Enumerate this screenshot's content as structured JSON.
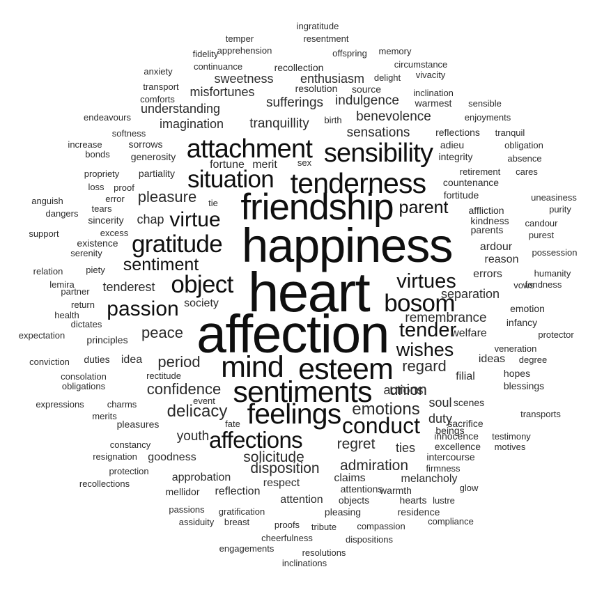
{
  "words": [
    {
      "text": "heart",
      "weight": 100
    },
    {
      "text": "affection",
      "weight": 96
    },
    {
      "text": "happiness",
      "weight": 86
    },
    {
      "text": "friendship",
      "weight": 66
    },
    {
      "text": "sentiments",
      "weight": 52
    },
    {
      "text": "mind",
      "weight": 52
    },
    {
      "text": "esteem",
      "weight": 52
    },
    {
      "text": "tenderness",
      "weight": 50
    },
    {
      "text": "feelings",
      "weight": 50
    },
    {
      "text": "attachment",
      "weight": 46
    },
    {
      "text": "sensibility",
      "weight": 46
    },
    {
      "text": "situation",
      "weight": 42
    },
    {
      "text": "gratitude",
      "weight": 42
    },
    {
      "text": "object",
      "weight": 42
    },
    {
      "text": "bosom",
      "weight": 42
    },
    {
      "text": "affections",
      "weight": 40
    },
    {
      "text": "conduct",
      "weight": 38
    },
    {
      "text": "passion",
      "weight": 36
    },
    {
      "text": "virtue",
      "weight": 36
    },
    {
      "text": "virtues",
      "weight": 34
    },
    {
      "text": "tender",
      "weight": 34
    },
    {
      "text": "wishes",
      "weight": 32
    },
    {
      "text": "sentiment",
      "weight": 30
    },
    {
      "text": "parent",
      "weight": 30
    },
    {
      "text": "emotions",
      "weight": 28
    },
    {
      "text": "delicacy",
      "weight": 28
    },
    {
      "text": "confidence",
      "weight": 26
    },
    {
      "text": "union",
      "weight": 26
    },
    {
      "text": "regard",
      "weight": 26
    },
    {
      "text": "period",
      "weight": 26
    },
    {
      "text": "peace",
      "weight": 26
    },
    {
      "text": "pleasure",
      "weight": 26
    },
    {
      "text": "regret",
      "weight": 24
    },
    {
      "text": "disposition",
      "weight": 24
    },
    {
      "text": "solicitude",
      "weight": 24
    },
    {
      "text": "admiration",
      "weight": 24
    },
    {
      "text": "youth",
      "weight": 22
    },
    {
      "text": "tranquillity",
      "weight": 22
    },
    {
      "text": "benevolence",
      "weight": 22
    },
    {
      "text": "sensations",
      "weight": 22
    },
    {
      "text": "sufferings",
      "weight": 22
    },
    {
      "text": "indulgence",
      "weight": 22
    },
    {
      "text": "remembrance",
      "weight": 22
    },
    {
      "text": "enthusiasm",
      "weight": 20
    },
    {
      "text": "sweetness",
      "weight": 20
    },
    {
      "text": "misfortunes",
      "weight": 20
    },
    {
      "text": "understanding",
      "weight": 20
    },
    {
      "text": "imagination",
      "weight": 20
    },
    {
      "text": "tenderest",
      "weight": 20
    },
    {
      "text": "society",
      "weight": 18
    },
    {
      "text": "soul",
      "weight": 20
    },
    {
      "text": "actions",
      "weight": 20
    },
    {
      "text": "ties",
      "weight": 20
    },
    {
      "text": "duty",
      "weight": 20
    },
    {
      "text": "chap",
      "weight": 20
    },
    {
      "text": "separation",
      "weight": 20
    },
    {
      "text": "errors",
      "weight": 18
    },
    {
      "text": "ardour",
      "weight": 18
    },
    {
      "text": "reason",
      "weight": 18
    },
    {
      "text": "welfare",
      "weight": 18
    },
    {
      "text": "ideas",
      "weight": 18
    },
    {
      "text": "idea",
      "weight": 18
    },
    {
      "text": "filial",
      "weight": 18
    },
    {
      "text": "goodness",
      "weight": 18
    },
    {
      "text": "approbation",
      "weight": 18
    },
    {
      "text": "respect",
      "weight": 18
    },
    {
      "text": "claims",
      "weight": 18
    },
    {
      "text": "melancholy",
      "weight": 18
    },
    {
      "text": "reflection",
      "weight": 18
    },
    {
      "text": "mellidor",
      "weight": 16
    },
    {
      "text": "attention",
      "weight": 18
    },
    {
      "text": "fortune",
      "weight": 18
    },
    {
      "text": "merit",
      "weight": 18
    },
    {
      "text": "generosity",
      "weight": 16
    },
    {
      "text": "sorrows",
      "weight": 16
    },
    {
      "text": "partiality",
      "weight": 16
    },
    {
      "text": "recollection",
      "weight": 16
    },
    {
      "text": "resolution",
      "weight": 16
    },
    {
      "text": "source",
      "weight": 16
    },
    {
      "text": "fortitude",
      "weight": 16
    },
    {
      "text": "countenance",
      "weight": 16
    },
    {
      "text": "integrity",
      "weight": 16
    },
    {
      "text": "adieu",
      "weight": 16
    },
    {
      "text": "reflections",
      "weight": 16
    },
    {
      "text": "warmest",
      "weight": 16
    },
    {
      "text": "principles",
      "weight": 16
    },
    {
      "text": "duties",
      "weight": 16
    },
    {
      "text": "emotion",
      "weight": 16
    },
    {
      "text": "infancy",
      "weight": 16
    },
    {
      "text": "pleasing",
      "weight": 16
    },
    {
      "text": "attentions",
      "weight": 16
    },
    {
      "text": "objects",
      "weight": 16
    },
    {
      "text": "warmth",
      "weight": 16
    },
    {
      "text": "hearts",
      "weight": 16
    },
    {
      "text": "residence",
      "weight": 16
    },
    {
      "text": "beings",
      "weight": 16
    },
    {
      "text": "scenes",
      "weight": 16
    },
    {
      "text": "sacrifice",
      "weight": 16
    },
    {
      "text": "innocence",
      "weight": 16
    },
    {
      "text": "excellence",
      "weight": 16
    },
    {
      "text": "intercourse",
      "weight": 16
    },
    {
      "text": "hopes",
      "weight": 16
    },
    {
      "text": "blessings",
      "weight": 16
    },
    {
      "text": "veneration",
      "weight": 14
    },
    {
      "text": "degree",
      "weight": 14
    },
    {
      "text": "protector",
      "weight": 14
    },
    {
      "text": "vows",
      "weight": 14
    },
    {
      "text": "fondness",
      "weight": 14
    },
    {
      "text": "humanity",
      "weight": 14
    },
    {
      "text": "possession",
      "weight": 14
    },
    {
      "text": "purest",
      "weight": 14
    },
    {
      "text": "candour",
      "weight": 14
    },
    {
      "text": "purity",
      "weight": 14
    },
    {
      "text": "uneasiness",
      "weight": 14
    },
    {
      "text": "affliction",
      "weight": 16
    },
    {
      "text": "kindness",
      "weight": 16
    },
    {
      "text": "parents",
      "weight": 16
    },
    {
      "text": "retirement",
      "weight": 14
    },
    {
      "text": "cares",
      "weight": 14
    },
    {
      "text": "absence",
      "weight": 14
    },
    {
      "text": "obligation",
      "weight": 14
    },
    {
      "text": "tranquil",
      "weight": 14
    },
    {
      "text": "enjoyments",
      "weight": 14
    },
    {
      "text": "sensible",
      "weight": 14
    },
    {
      "text": "inclination",
      "weight": 14
    },
    {
      "text": "vivacity",
      "weight": 14
    },
    {
      "text": "circumstance",
      "weight": 14
    },
    {
      "text": "delight",
      "weight": 14
    },
    {
      "text": "memory",
      "weight": 14
    },
    {
      "text": "offspring",
      "weight": 14
    },
    {
      "text": "resentment",
      "weight": 14
    },
    {
      "text": "ingratitude",
      "weight": 14
    },
    {
      "text": "temper",
      "weight": 14
    },
    {
      "text": "apprehension",
      "weight": 14
    },
    {
      "text": "fidelity",
      "weight": 14
    },
    {
      "text": "continuance",
      "weight": 14
    },
    {
      "text": "anxiety",
      "weight": 14
    },
    {
      "text": "transport",
      "weight": 14
    },
    {
      "text": "comforts",
      "weight": 14
    },
    {
      "text": "endeavours",
      "weight": 14
    },
    {
      "text": "softness",
      "weight": 14
    },
    {
      "text": "increase",
      "weight": 14
    },
    {
      "text": "bonds",
      "weight": 14
    },
    {
      "text": "propriety",
      "weight": 14
    },
    {
      "text": "proof",
      "weight": 14
    },
    {
      "text": "loss",
      "weight": 14
    },
    {
      "text": "anguish",
      "weight": 14
    },
    {
      "text": "error",
      "weight": 14
    },
    {
      "text": "dangers",
      "weight": 14
    },
    {
      "text": "tears",
      "weight": 14
    },
    {
      "text": "sincerity",
      "weight": 16
    },
    {
      "text": "support",
      "weight": 14
    },
    {
      "text": "excess",
      "weight": 14
    },
    {
      "text": "existence",
      "weight": 16
    },
    {
      "text": "serenity",
      "weight": 14
    },
    {
      "text": "relation",
      "weight": 14
    },
    {
      "text": "piety",
      "weight": 14
    },
    {
      "text": "lemira",
      "weight": 14
    },
    {
      "text": "partner",
      "weight": 14
    },
    {
      "text": "return",
      "weight": 14
    },
    {
      "text": "health",
      "weight": 14
    },
    {
      "text": "dictates",
      "weight": 14
    },
    {
      "text": "expectation",
      "weight": 14
    },
    {
      "text": "conviction",
      "weight": 14
    },
    {
      "text": "rectitude",
      "weight": 14
    },
    {
      "text": "consolation",
      "weight": 14
    },
    {
      "text": "obligations",
      "weight": 14
    },
    {
      "text": "event",
      "weight": 14
    },
    {
      "text": "expressions",
      "weight": 14
    },
    {
      "text": "charms",
      "weight": 14
    },
    {
      "text": "merits",
      "weight": 14
    },
    {
      "text": "pleasures",
      "weight": 16
    },
    {
      "text": "fate",
      "weight": 14
    },
    {
      "text": "constancy",
      "weight": 14
    },
    {
      "text": "resignation",
      "weight": 14
    },
    {
      "text": "protection",
      "weight": 14
    },
    {
      "text": "recollections",
      "weight": 14
    },
    {
      "text": "passions",
      "weight": 14
    },
    {
      "text": "gratification",
      "weight": 14
    },
    {
      "text": "assiduity",
      "weight": 14
    },
    {
      "text": "breast",
      "weight": 14
    },
    {
      "text": "proofs",
      "weight": 14
    },
    {
      "text": "tribute",
      "weight": 14
    },
    {
      "text": "compassion",
      "weight": 14
    },
    {
      "text": "compliance",
      "weight": 14
    },
    {
      "text": "cheerfulness",
      "weight": 14
    },
    {
      "text": "dispositions",
      "weight": 14
    },
    {
      "text": "engagements",
      "weight": 14
    },
    {
      "text": "resolutions",
      "weight": 14
    },
    {
      "text": "inclinations",
      "weight": 14
    },
    {
      "text": "lustre",
      "weight": 14
    },
    {
      "text": "glow",
      "weight": 14
    },
    {
      "text": "firmness",
      "weight": 14
    },
    {
      "text": "testimony",
      "weight": 14
    },
    {
      "text": "motives",
      "weight": 14
    },
    {
      "text": "transports",
      "weight": 14
    },
    {
      "text": "birth",
      "weight": 14
    },
    {
      "text": "sex",
      "weight": 14
    },
    {
      "text": "tie",
      "weight": 14
    }
  ]
}
